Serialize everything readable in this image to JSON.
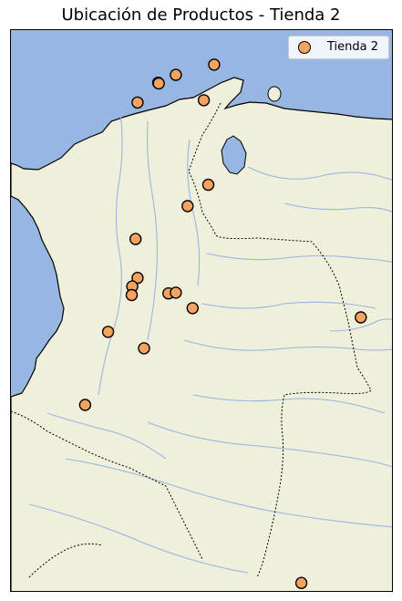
{
  "title": "Ubicación de Productos - Tienda 2",
  "legend": {
    "label": "Tienda 2"
  },
  "colors": {
    "ocean": "#97b6e1",
    "land": "#efefdb",
    "river": "#97b6e1",
    "marker_fill": "#f4a460",
    "marker_edge": "#000000",
    "coast": "#000000"
  },
  "chart_data": {
    "type": "scatter",
    "title": "Ubicación de Productos - Tienda 2",
    "series": [
      {
        "name": "Tienda 2",
        "points": [
          {
            "lon": -74.2,
            "lat": 11.24
          },
          {
            "lon": -74.8,
            "lat": 11.0
          },
          {
            "lon": -74.78,
            "lat": 10.98
          },
          {
            "lon": -75.5,
            "lat": 10.4
          },
          {
            "lon": -72.9,
            "lat": 11.55
          },
          {
            "lon": -73.25,
            "lat": 10.47
          },
          {
            "lon": -73.1,
            "lat": 7.9
          },
          {
            "lon": -73.8,
            "lat": 7.25
          },
          {
            "lon": -75.57,
            "lat": 6.25
          },
          {
            "lon": -75.5,
            "lat": 5.07
          },
          {
            "lon": -75.68,
            "lat": 4.81
          },
          {
            "lon": -75.7,
            "lat": 4.55
          },
          {
            "lon": -74.45,
            "lat": 4.6
          },
          {
            "lon": -74.2,
            "lat": 4.62
          },
          {
            "lon": -73.63,
            "lat": 4.15
          },
          {
            "lon": -76.5,
            "lat": 3.43
          },
          {
            "lon": -75.28,
            "lat": 2.93
          },
          {
            "lon": -77.28,
            "lat": 1.21
          },
          {
            "lon": -67.92,
            "lat": 3.87
          },
          {
            "lon": -69.94,
            "lat": -4.2
          }
        ]
      }
    ]
  }
}
